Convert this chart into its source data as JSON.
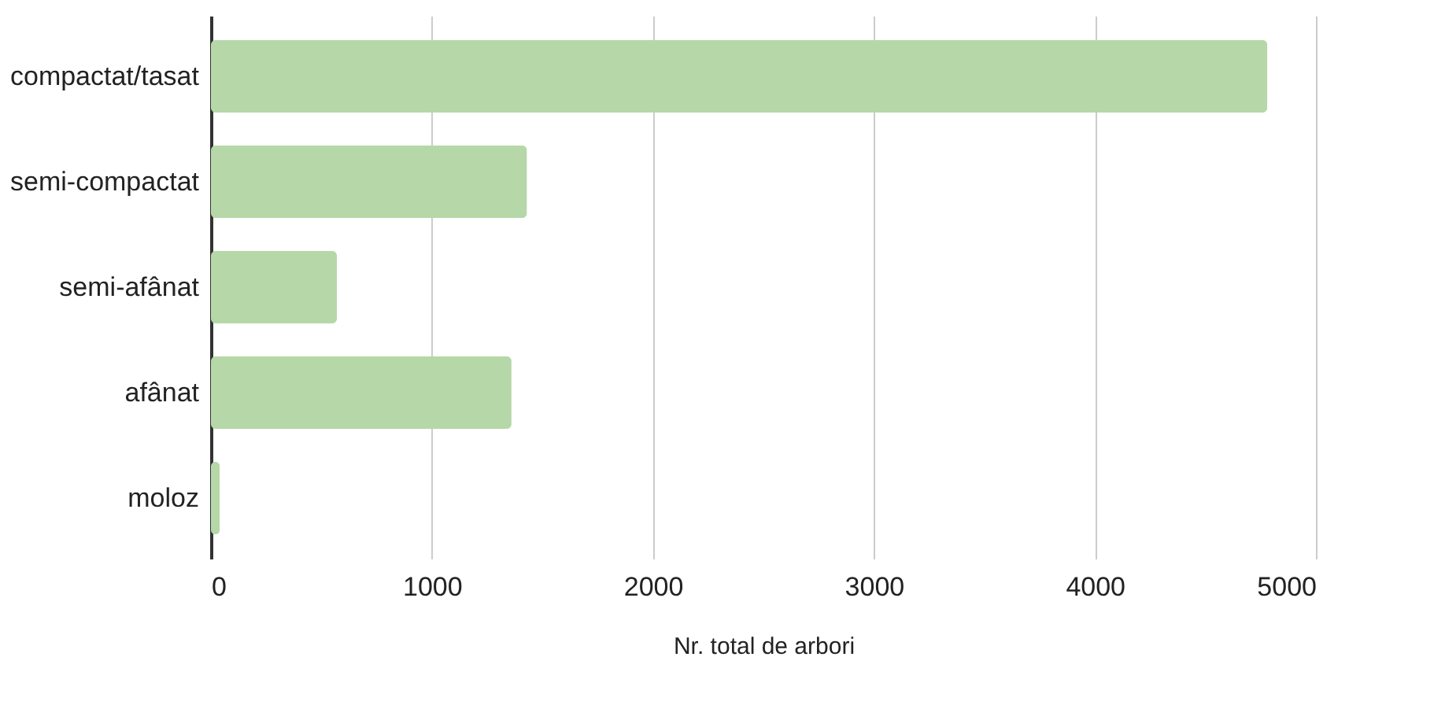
{
  "chart_data": {
    "type": "bar",
    "orientation": "horizontal",
    "xlabel": "Nr. total de arbori",
    "categories": [
      "compactat/tasat",
      "semi-compactat",
      "semi-afânat",
      "afânat",
      "moloz"
    ],
    "values": [
      4780,
      1430,
      570,
      1360,
      40
    ],
    "color": "#b6d7a8",
    "xlim": [
      0,
      5000
    ],
    "xticks": [
      0,
      1000,
      2000,
      3000,
      4000,
      5000
    ],
    "grid": "x"
  }
}
